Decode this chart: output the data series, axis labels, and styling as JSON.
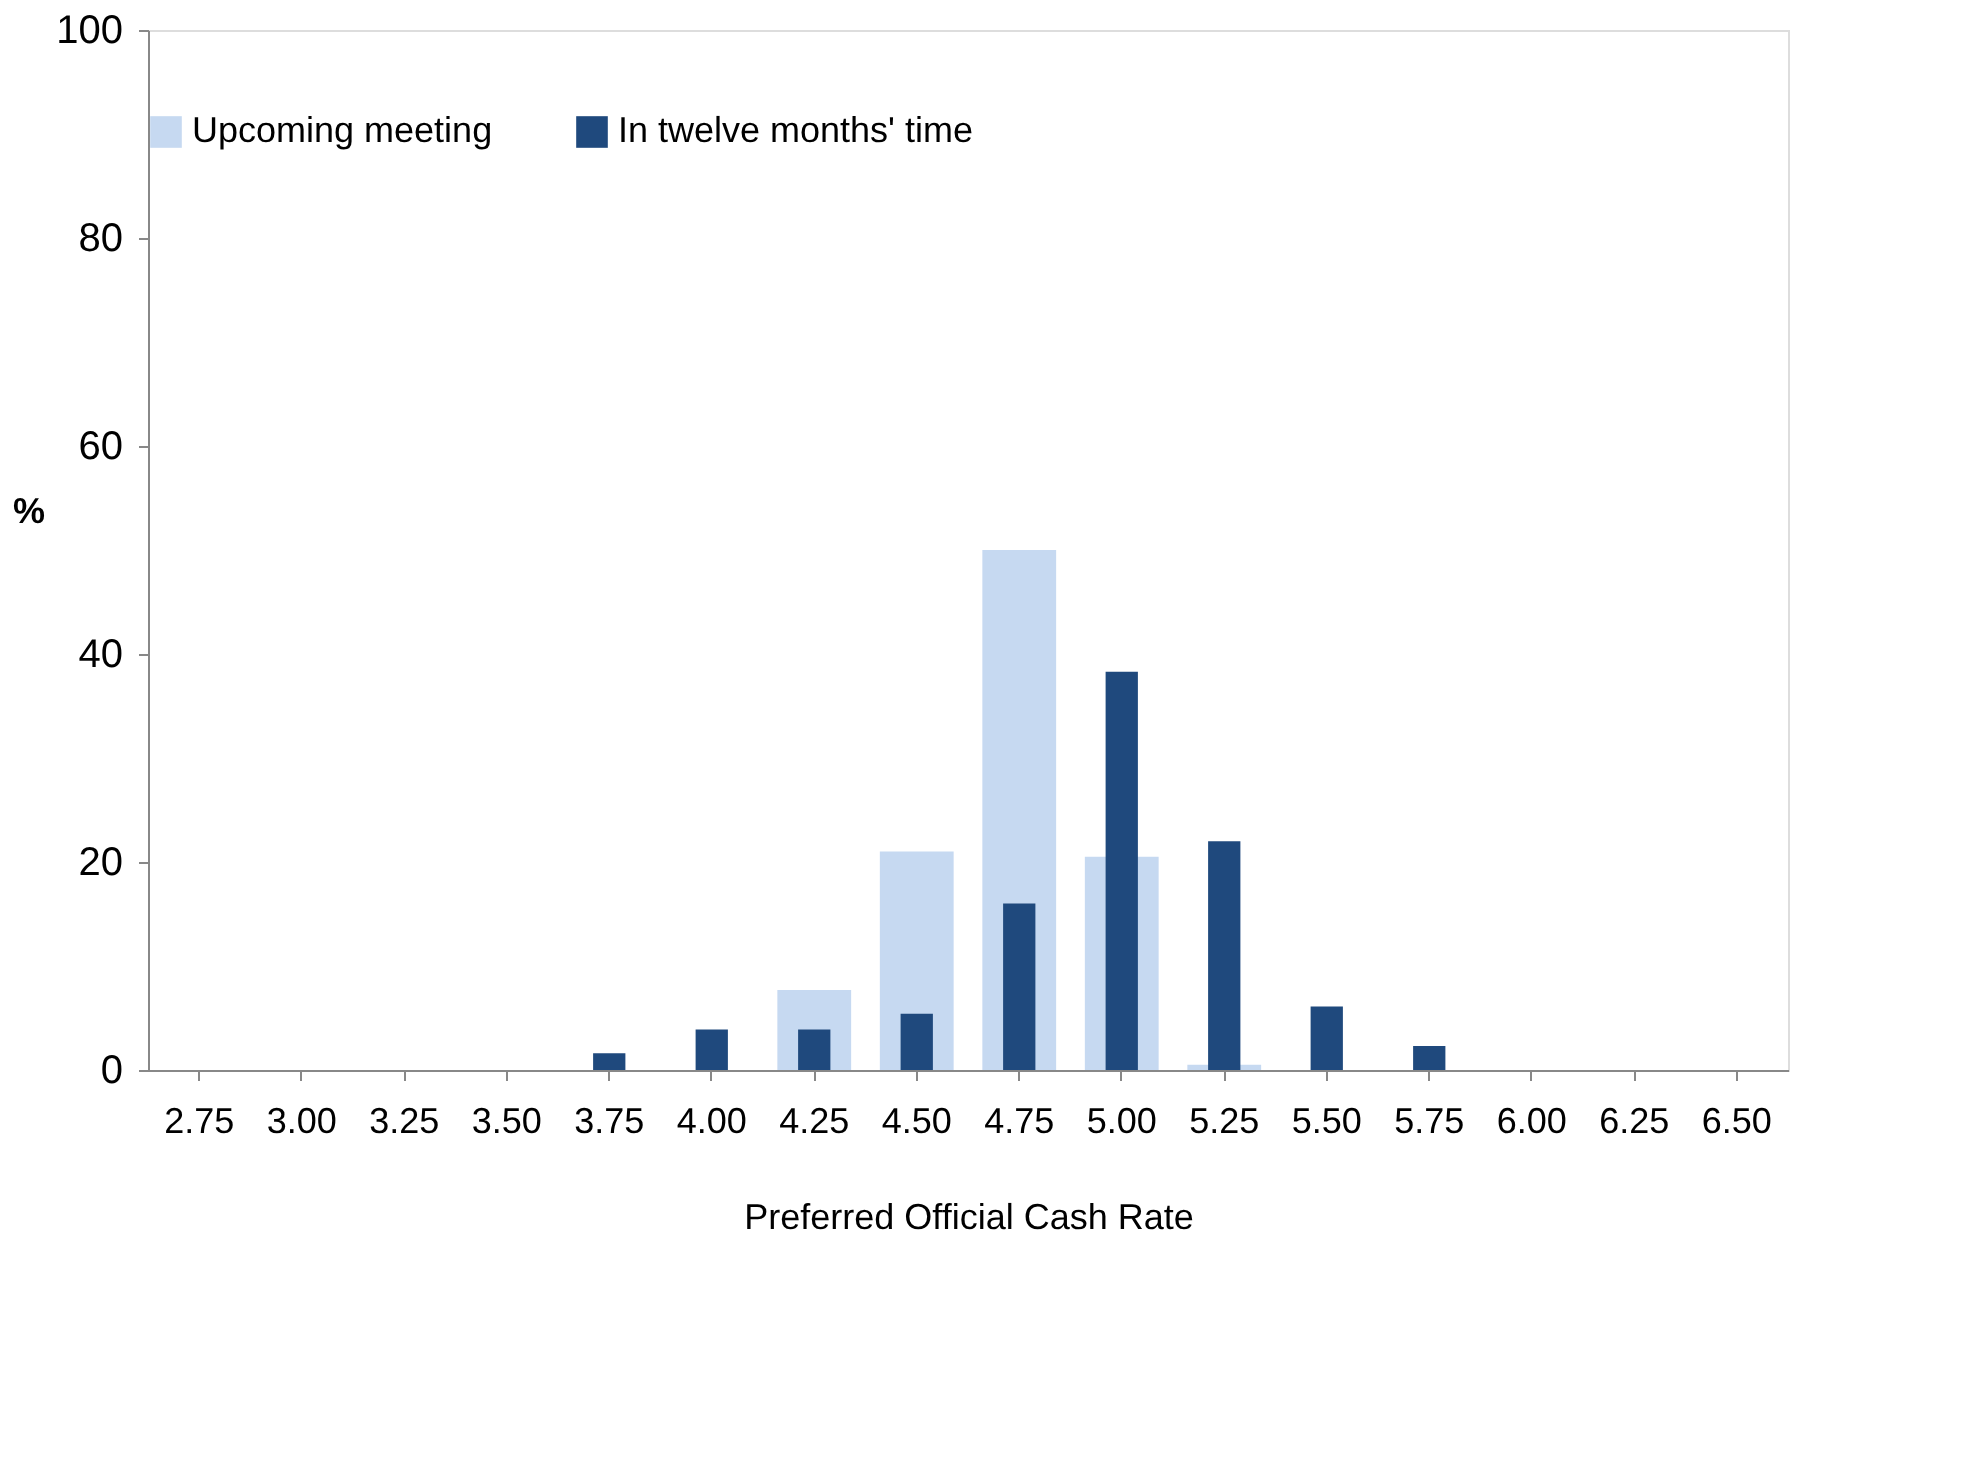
{
  "chart_data": {
    "type": "bar",
    "xlabel": "Preferred  Official Cash Rate",
    "ylabel": "%",
    "categories": [
      "2.75",
      "3.00",
      "3.25",
      "3.50",
      "3.75",
      "4.00",
      "4.25",
      "4.50",
      "4.75",
      "5.00",
      "5.25",
      "5.50",
      "5.75",
      "6.00",
      "6.25",
      "6.50"
    ],
    "series": [
      {
        "name": "Upcoming meeting",
        "color": "#c6d9f1",
        "values": [
          null,
          null,
          null,
          null,
          null,
          null,
          7.7,
          21,
          50,
          20.5,
          0.5,
          null,
          null,
          null,
          null,
          null
        ]
      },
      {
        "name": "In twelve months' time",
        "color": "#1f497d",
        "values": [
          null,
          null,
          null,
          null,
          1.6,
          3.9,
          3.9,
          5.4,
          16,
          38.3,
          22,
          6.1,
          2.3,
          null,
          null,
          null
        ]
      }
    ],
    "ylim": [
      0,
      100
    ],
    "yticks": [
      0,
      20,
      40,
      60,
      80,
      100
    ],
    "grid": false,
    "legend": "top"
  }
}
